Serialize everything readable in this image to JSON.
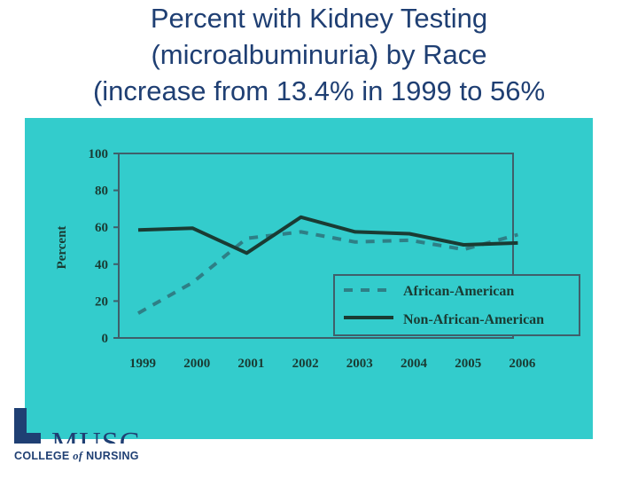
{
  "slide": {
    "title_lines": [
      "Percent with Kidney Testing",
      "(microalbuminuria) by Race",
      "(increase from 13.4% in 1999 to 56%"
    ]
  },
  "logo": {
    "mark_text": "MUSC",
    "caption_pre": "COLLEGE ",
    "caption_of": "of",
    "caption_post": " NURSING",
    "color": "#1f3f73"
  },
  "colors": {
    "title": "#1f3f73",
    "panel_background": "#33cccc",
    "plot_border": "#3f5f6a",
    "african_american": "#2e7f86",
    "non_african_american": "#1a3b33"
  },
  "chart_data": {
    "type": "line",
    "title": "",
    "xlabel": "",
    "ylabel": "Percent",
    "x": [
      "1999",
      "2000",
      "2001",
      "2002",
      "2003",
      "2004",
      "2005",
      "2006"
    ],
    "ylim": [
      0,
      100
    ],
    "yticks": [
      0,
      20,
      40,
      60,
      80,
      100
    ],
    "grid": false,
    "legend_position": "bottom-right",
    "series": [
      {
        "name": "African-American",
        "style": "dashed",
        "values": [
          13.4,
          30,
          54,
          57.5,
          52,
          53,
          48,
          56
        ]
      },
      {
        "name": "Non-African-American",
        "style": "solid",
        "values": [
          58.5,
          59.5,
          46,
          65.5,
          57.5,
          56.5,
          50.5,
          51.5
        ]
      }
    ]
  }
}
